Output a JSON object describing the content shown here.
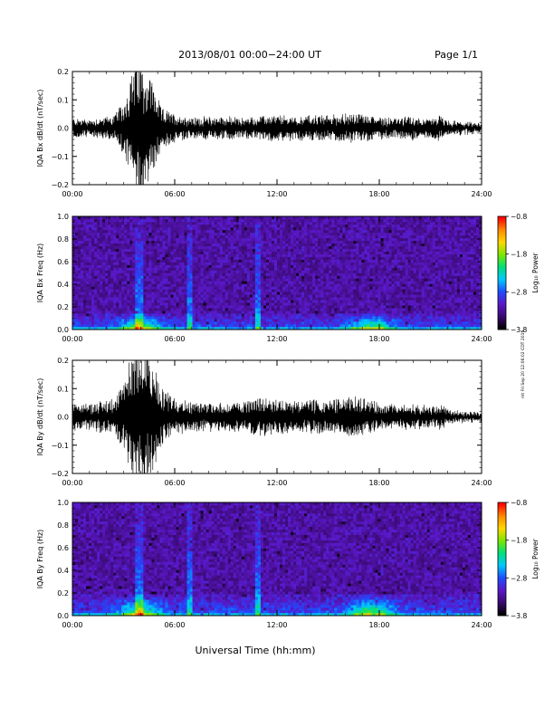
{
  "header": {
    "title": "2013/08/01   00:00−24:00 UT",
    "page": "Page 1/1"
  },
  "footer": {
    "xlabel": "Universal Time (hh:mm)",
    "side_stamp": "mt Fri Sep 20 12:06:02 CDT 2019"
  },
  "colors": {
    "trace": "#000000",
    "background": "#ffffff",
    "spectrogram_base": "#2a0a55",
    "colormap": [
      "#000000",
      "#3a0a6e",
      "#5a18c8",
      "#1e4cff",
      "#00c8ff",
      "#00e07a",
      "#7ce600",
      "#ffd800",
      "#ff8a00",
      "#ff0000"
    ]
  },
  "chart_data": [
    {
      "type": "line",
      "ylabel": "IQA Bx dB/dt (nT/sec)",
      "xlim": [
        0,
        24
      ],
      "ylim": [
        -0.2,
        0.2
      ],
      "x_ticks": [
        "00:00",
        "06:00",
        "12:00",
        "18:00",
        "24:00"
      ],
      "y_ticks": [
        "0.2",
        "0.1",
        "0.0",
        "−0.1",
        "−0.2"
      ],
      "y_tick_values": [
        0.2,
        0.1,
        0.0,
        -0.1,
        -0.2
      ],
      "envelope": {
        "x": [
          0,
          1,
          2,
          2.5,
          3.0,
          3.5,
          3.8,
          4.0,
          4.2,
          4.5,
          4.8,
          5.2,
          6,
          7,
          8,
          9,
          10,
          11,
          12,
          13,
          14,
          15,
          16,
          16.5,
          17,
          17.5,
          18,
          19,
          20,
          21,
          21.5,
          22,
          23,
          24
        ],
        "amp": [
          0.035,
          0.03,
          0.04,
          0.05,
          0.09,
          0.2,
          0.25,
          0.25,
          0.2,
          0.2,
          0.15,
          0.07,
          0.05,
          0.035,
          0.04,
          0.04,
          0.035,
          0.04,
          0.045,
          0.04,
          0.045,
          0.045,
          0.05,
          0.05,
          0.05,
          0.045,
          0.04,
          0.035,
          0.04,
          0.03,
          0.045,
          0.025,
          0.02,
          0.015
        ]
      }
    },
    {
      "type": "heatmap",
      "ylabel": "IQA Bx Freq (Hz)",
      "xlim": [
        0,
        24
      ],
      "ylim": [
        0.0,
        1.0
      ],
      "x_ticks": [
        "00:00",
        "06:00",
        "12:00",
        "18:00",
        "24:00"
      ],
      "y_ticks": [
        "1.0",
        "0.8",
        "0.6",
        "0.4",
        "0.2",
        "0.0"
      ],
      "y_tick_values": [
        1.0,
        0.8,
        0.6,
        0.4,
        0.2,
        0.0
      ],
      "colorbar": {
        "label": "Log₁₀ Power",
        "range": [
          -3.8,
          -0.8
        ],
        "ticks": [
          "−0.8",
          "−1.8",
          "−2.8",
          "−3.8"
        ],
        "tick_values": [
          -0.8,
          -1.8,
          -2.8,
          -3.8
        ]
      },
      "bright_columns": [
        3.8,
        4.0,
        4.1,
        6.9,
        10.9
      ],
      "low_freq_band": {
        "max_hz": 0.15,
        "peak_hours": [
          4.0,
          17.5
        ]
      }
    },
    {
      "type": "line",
      "ylabel": "IQA By dB/dt (nT/sec)",
      "xlim": [
        0,
        24
      ],
      "ylim": [
        -0.2,
        0.2
      ],
      "x_ticks": [
        "00:00",
        "06:00",
        "12:00",
        "18:00",
        "24:00"
      ],
      "y_ticks": [
        "0.2",
        "0.1",
        "0.0",
        "−0.1",
        "−0.2"
      ],
      "y_tick_values": [
        0.2,
        0.1,
        0.0,
        -0.1,
        -0.2
      ],
      "envelope": {
        "x": [
          0,
          1,
          2,
          2.5,
          3.0,
          3.5,
          3.8,
          4.0,
          4.2,
          4.5,
          4.8,
          5.2,
          6,
          7,
          8,
          9,
          10,
          11,
          12,
          13,
          14,
          15,
          16,
          16.5,
          17,
          17.5,
          18,
          19,
          20,
          21,
          21.5,
          22,
          23,
          24
        ],
        "amp": [
          0.05,
          0.045,
          0.06,
          0.07,
          0.12,
          0.25,
          0.25,
          0.25,
          0.25,
          0.22,
          0.2,
          0.1,
          0.07,
          0.05,
          0.05,
          0.05,
          0.05,
          0.07,
          0.06,
          0.055,
          0.06,
          0.06,
          0.065,
          0.07,
          0.065,
          0.055,
          0.05,
          0.04,
          0.045,
          0.035,
          0.05,
          0.025,
          0.02,
          0.015
        ]
      }
    },
    {
      "type": "heatmap",
      "ylabel": "IQA By Freq (Hz)",
      "xlim": [
        0,
        24
      ],
      "ylim": [
        0.0,
        1.0
      ],
      "x_ticks": [
        "00:00",
        "06:00",
        "12:00",
        "18:00",
        "24:00"
      ],
      "y_ticks": [
        "1.0",
        "0.8",
        "0.6",
        "0.4",
        "0.2",
        "0.0"
      ],
      "y_tick_values": [
        1.0,
        0.8,
        0.6,
        0.4,
        0.2,
        0.0
      ],
      "colorbar": {
        "label": "Log₁₀ Power",
        "range": [
          -3.8,
          -0.8
        ],
        "ticks": [
          "−0.8",
          "−1.8",
          "−2.8",
          "−3.8"
        ],
        "tick_values": [
          -0.8,
          -1.8,
          -2.8,
          -3.8
        ]
      },
      "bright_columns": [
        3.8,
        4.0,
        4.1,
        6.9,
        10.9
      ],
      "low_freq_band": {
        "max_hz": 0.2,
        "peak_hours": [
          4.0,
          17.5
        ]
      }
    }
  ]
}
